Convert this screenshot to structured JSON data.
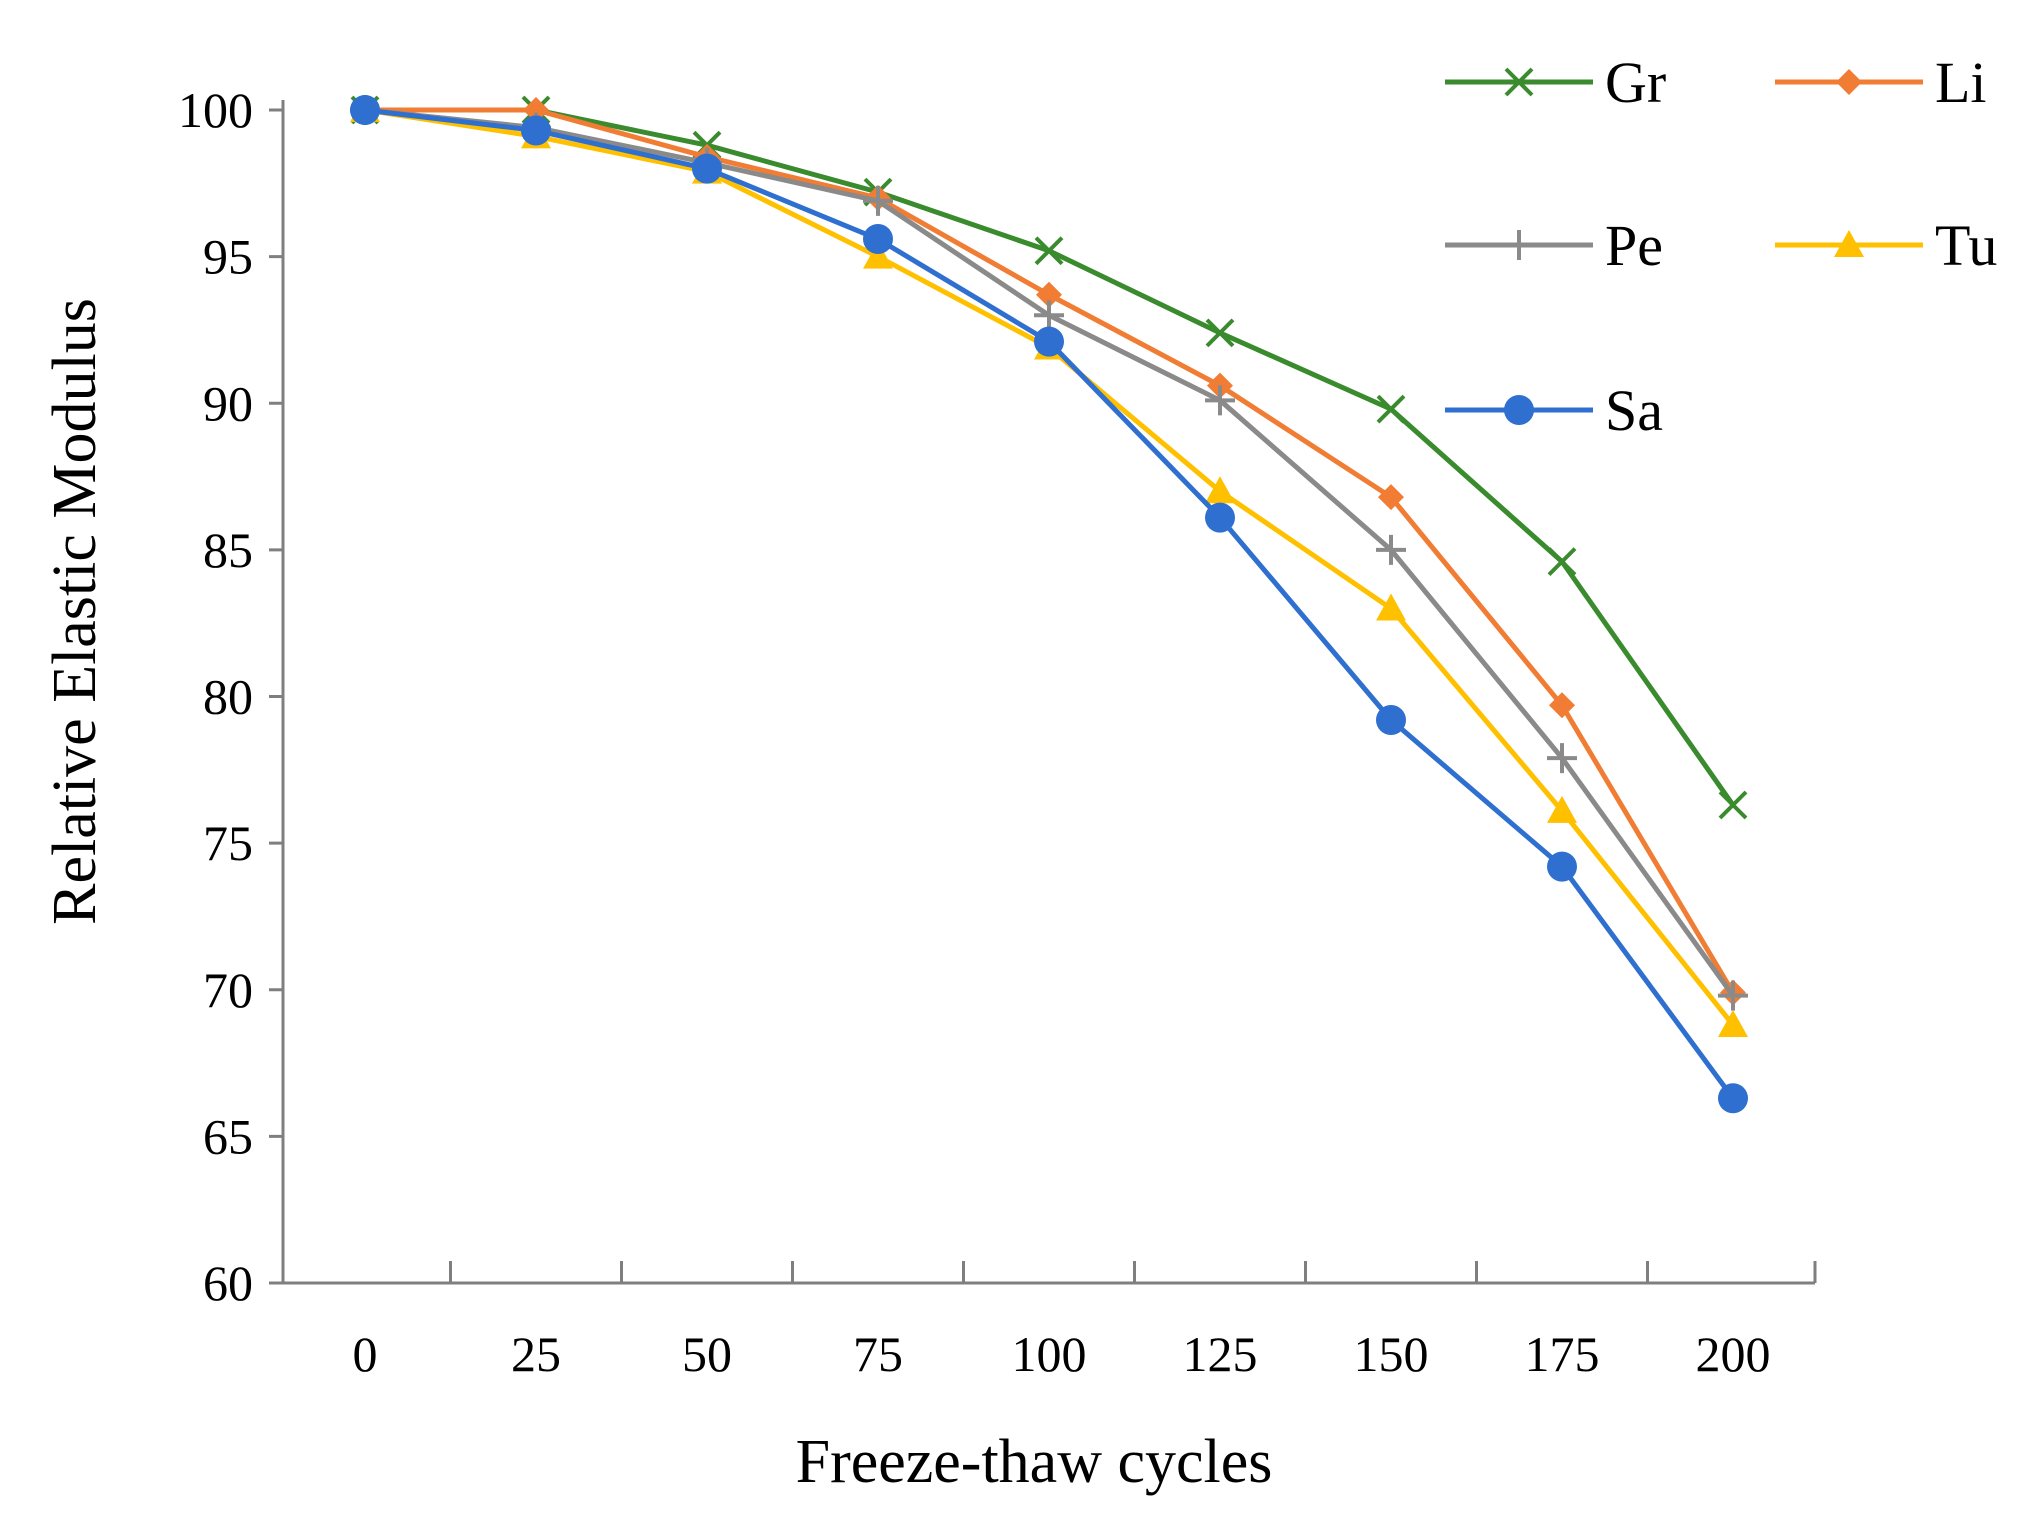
{
  "chart_data": {
    "type": "line",
    "title": "",
    "xlabel": "Freeze-thaw cycles",
    "ylabel": "Relative Elastic Modulus",
    "categories": [
      "0",
      "25",
      "50",
      "75",
      "100",
      "125",
      "150",
      "175",
      "200"
    ],
    "yticks": [
      "60",
      "65",
      "70",
      "75",
      "80",
      "85",
      "90",
      "95",
      "100"
    ],
    "ylim": [
      60,
      100
    ],
    "grid": false,
    "legend_position": "top-right",
    "series": [
      {
        "name": "Gr",
        "marker": "x",
        "color": "#3a8a2e",
        "values": [
          100,
          100,
          98.8,
          97.2,
          95.2,
          92.4,
          89.8,
          84.6,
          76.3
        ]
      },
      {
        "name": "Li",
        "marker": "diamond",
        "color": "#f07d33",
        "values": [
          100,
          100,
          98.4,
          97.0,
          93.7,
          90.6,
          86.8,
          79.7,
          69.9
        ]
      },
      {
        "name": "Pe",
        "marker": "plus",
        "color": "#8a8a8a",
        "values": [
          100,
          99.4,
          98.2,
          96.9,
          93.0,
          90.1,
          85.0,
          77.9,
          69.8
        ]
      },
      {
        "name": "Tu",
        "marker": "triangle",
        "color": "#ffc000",
        "values": [
          100,
          99.1,
          97.9,
          95.0,
          91.9,
          87.0,
          83.0,
          76.1,
          68.8
        ]
      },
      {
        "name": "Sa",
        "marker": "circle",
        "color": "#2e6fcf",
        "values": [
          100,
          99.3,
          98.0,
          95.6,
          92.1,
          86.1,
          79.2,
          74.2,
          66.3
        ]
      }
    ]
  }
}
